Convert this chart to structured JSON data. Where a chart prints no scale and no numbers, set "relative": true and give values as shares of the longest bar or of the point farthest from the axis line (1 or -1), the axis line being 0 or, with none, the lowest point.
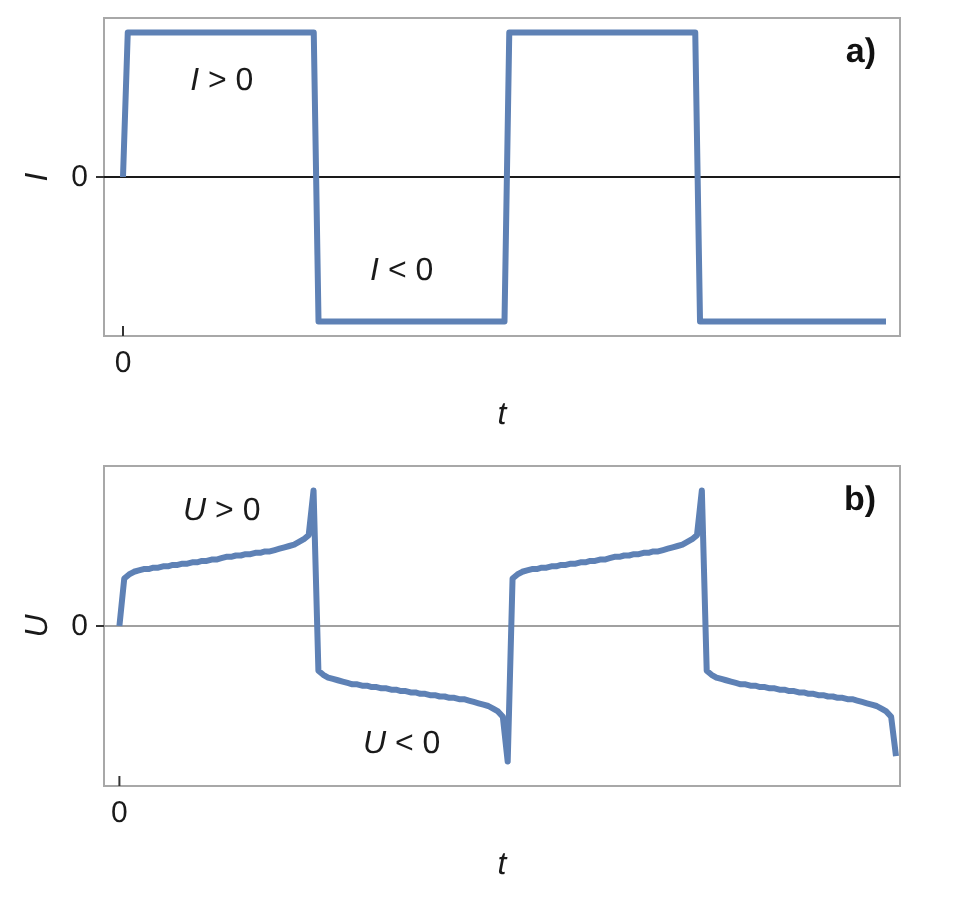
{
  "chart_data": [
    {
      "type": "line",
      "title": "a)",
      "xlabel": "t",
      "ylabel": "I",
      "relative": true,
      "categories": [
        null,
        null,
        null,
        null,
        null,
        null,
        null,
        null,
        null,
        null,
        null,
        null,
        null,
        null,
        null,
        null,
        null,
        null,
        null,
        null,
        null,
        null,
        null,
        null,
        null,
        null,
        null,
        null,
        null,
        null,
        null,
        null,
        null,
        null,
        null,
        null,
        null,
        null,
        null,
        null,
        null,
        null,
        null,
        null,
        null,
        null,
        null,
        null,
        null,
        null,
        null,
        null,
        null,
        null,
        null,
        null,
        null,
        null,
        null,
        null,
        null,
        null,
        null,
        null,
        null,
        null,
        null,
        null,
        null,
        null,
        null,
        null,
        null,
        null,
        null,
        null,
        null,
        null,
        null,
        null,
        null,
        null,
        null,
        null,
        null,
        null,
        null,
        null,
        null,
        null,
        null,
        null,
        null,
        null,
        null,
        null,
        null,
        null,
        null,
        null,
        null,
        null,
        null,
        null,
        null,
        null,
        null,
        null,
        null,
        null,
        null,
        null,
        null,
        null,
        null,
        null,
        null,
        null,
        null,
        null,
        null,
        null,
        null,
        null,
        null,
        null,
        null,
        null,
        null,
        null,
        null,
        null,
        null,
        null,
        null,
        null,
        null,
        null,
        null,
        null,
        null,
        null,
        null,
        null,
        null,
        null,
        null,
        null,
        null,
        null,
        null,
        null,
        null,
        null,
        null,
        null,
        null,
        null,
        null,
        null,
        null
      ],
      "series": [
        {
          "color": "#5e81b5",
          "values": [
            0,
            1,
            1,
            1,
            1,
            1,
            1,
            1,
            1,
            1,
            1,
            1,
            1,
            1,
            1,
            1,
            1,
            1,
            1,
            1,
            1,
            1,
            1,
            1,
            1,
            1,
            1,
            1,
            1,
            1,
            1,
            1,
            1,
            1,
            1,
            1,
            1,
            1,
            1,
            1,
            1,
            -1,
            -1,
            -1,
            -1,
            -1,
            -1,
            -1,
            -1,
            -1,
            -1,
            -1,
            -1,
            -1,
            -1,
            -1,
            -1,
            -1,
            -1,
            -1,
            -1,
            -1,
            -1,
            -1,
            -1,
            -1,
            -1,
            -1,
            -1,
            -1,
            -1,
            -1,
            -1,
            -1,
            -1,
            -1,
            -1,
            -1,
            -1,
            -1,
            -1,
            1,
            1,
            1,
            1,
            1,
            1,
            1,
            1,
            1,
            1,
            1,
            1,
            1,
            1,
            1,
            1,
            1,
            1,
            1,
            1,
            1,
            1,
            1,
            1,
            1,
            1,
            1,
            1,
            1,
            1,
            1,
            1,
            1,
            1,
            1,
            1,
            1,
            1,
            1,
            1,
            -1,
            -1,
            -1,
            -1,
            -1,
            -1,
            -1,
            -1,
            -1,
            -1,
            -1,
            -1,
            -1,
            -1,
            -1,
            -1,
            -1,
            -1,
            -1,
            -1,
            -1,
            -1,
            -1,
            -1,
            -1,
            -1,
            -1,
            -1,
            -1,
            -1,
            -1,
            -1,
            -1,
            -1,
            -1,
            -1,
            -1,
            -1,
            -1,
            -1
          ]
        }
      ],
      "annotations": [
        "0",
        "0",
        "I > 0",
        "I < 0"
      ]
    },
    {
      "type": "line",
      "title": "b)",
      "xlabel": "t",
      "ylabel": "U",
      "relative": true,
      "categories": [
        null,
        null,
        null,
        null,
        null,
        null,
        null,
        null,
        null,
        null,
        null,
        null,
        null,
        null,
        null,
        null,
        null,
        null,
        null,
        null,
        null,
        null,
        null,
        null,
        null,
        null,
        null,
        null,
        null,
        null,
        null,
        null,
        null,
        null,
        null,
        null,
        null,
        null,
        null,
        null,
        null,
        null,
        null,
        null,
        null,
        null,
        null,
        null,
        null,
        null,
        null,
        null,
        null,
        null,
        null,
        null,
        null,
        null,
        null,
        null,
        null,
        null,
        null,
        null,
        null,
        null,
        null,
        null,
        null,
        null,
        null,
        null,
        null,
        null,
        null,
        null,
        null,
        null,
        null,
        null,
        null,
        null,
        null,
        null,
        null,
        null,
        null,
        null,
        null,
        null,
        null,
        null,
        null,
        null,
        null,
        null,
        null,
        null,
        null,
        null,
        null,
        null,
        null,
        null,
        null,
        null,
        null,
        null,
        null,
        null,
        null,
        null,
        null,
        null,
        null,
        null,
        null,
        null,
        null,
        null,
        null,
        null,
        null,
        null,
        null,
        null,
        null,
        null,
        null,
        null,
        null,
        null,
        null,
        null,
        null,
        null,
        null,
        null,
        null,
        null,
        null,
        null,
        null,
        null,
        null,
        null,
        null,
        null,
        null,
        null,
        null,
        null,
        null,
        null,
        null,
        null,
        null,
        null,
        null,
        null,
        null
      ],
      "series": [
        {
          "color": "#5e81b5",
          "values": [
            0,
            0.35,
            0.38,
            0.4,
            0.41,
            0.42,
            0.42,
            0.43,
            0.43,
            0.44,
            0.44,
            0.45,
            0.45,
            0.46,
            0.46,
            0.47,
            0.47,
            0.48,
            0.48,
            0.49,
            0.49,
            0.5,
            0.51,
            0.51,
            0.52,
            0.52,
            0.53,
            0.53,
            0.54,
            0.54,
            0.55,
            0.55,
            0.56,
            0.57,
            0.58,
            0.59,
            0.6,
            0.62,
            0.64,
            0.67,
            1,
            -0.33,
            -0.36,
            -0.38,
            -0.39,
            -0.4,
            -0.41,
            -0.42,
            -0.43,
            -0.43,
            -0.44,
            -0.44,
            -0.45,
            -0.45,
            -0.46,
            -0.46,
            -0.47,
            -0.47,
            -0.48,
            -0.48,
            -0.49,
            -0.49,
            -0.5,
            -0.5,
            -0.51,
            -0.51,
            -0.52,
            -0.52,
            -0.53,
            -0.53,
            -0.54,
            -0.54,
            -0.55,
            -0.56,
            -0.57,
            -0.58,
            -0.59,
            -0.61,
            -0.63,
            -0.67,
            -1,
            0.35,
            0.38,
            0.4,
            0.41,
            0.42,
            0.42,
            0.43,
            0.43,
            0.44,
            0.44,
            0.45,
            0.45,
            0.46,
            0.46,
            0.47,
            0.47,
            0.48,
            0.48,
            0.49,
            0.49,
            0.5,
            0.51,
            0.51,
            0.52,
            0.52,
            0.53,
            0.53,
            0.54,
            0.54,
            0.55,
            0.55,
            0.56,
            0.57,
            0.58,
            0.59,
            0.6,
            0.62,
            0.64,
            0.67,
            1,
            -0.33,
            -0.36,
            -0.38,
            -0.39,
            -0.4,
            -0.41,
            -0.42,
            -0.43,
            -0.43,
            -0.44,
            -0.44,
            -0.45,
            -0.45,
            -0.46,
            -0.46,
            -0.47,
            -0.47,
            -0.48,
            -0.48,
            -0.49,
            -0.49,
            -0.5,
            -0.5,
            -0.51,
            -0.51,
            -0.52,
            -0.52,
            -0.53,
            -0.53,
            -0.54,
            -0.54,
            -0.55,
            -0.56,
            -0.57,
            -0.58,
            -0.59,
            -0.61,
            -0.63,
            -0.67,
            -0.96
          ]
        }
      ],
      "annotations": [
        "0",
        "0",
        "U > 0",
        "U < 0"
      ]
    }
  ]
}
